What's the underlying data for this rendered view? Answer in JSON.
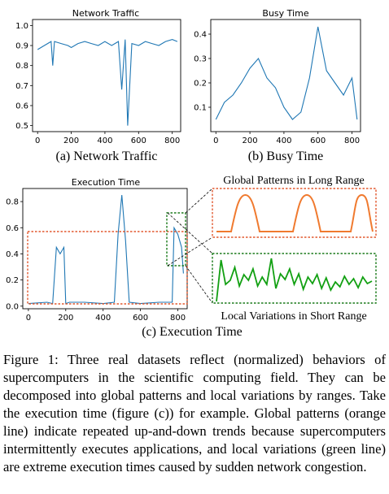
{
  "chart_data": [
    {
      "type": "line",
      "title": "Network Traffic",
      "subcaption": "(a) Network Traffic",
      "xlim": [
        -30,
        850
      ],
      "ylim": [
        0.47,
        1.03
      ],
      "xticks": [
        0,
        200,
        400,
        600,
        800
      ],
      "yticks": [
        0.5,
        0.6,
        0.7,
        0.8,
        0.9,
        1.0
      ],
      "ytick_labels": [
        "0.5",
        "0.6",
        "0.7",
        "0.8",
        "0.9",
        "1.0"
      ],
      "series": [
        {
          "color": "#1f77b4",
          "x": [
            0,
            40,
            80,
            90,
            100,
            140,
            180,
            200,
            240,
            280,
            320,
            360,
            400,
            440,
            480,
            500,
            520,
            535,
            560,
            600,
            640,
            680,
            720,
            760,
            800,
            830
          ],
          "y": [
            0.88,
            0.9,
            0.92,
            0.8,
            0.92,
            0.91,
            0.9,
            0.89,
            0.91,
            0.92,
            0.91,
            0.9,
            0.92,
            0.9,
            0.92,
            0.68,
            0.93,
            0.5,
            0.91,
            0.9,
            0.92,
            0.91,
            0.9,
            0.92,
            0.93,
            0.92
          ]
        }
      ]
    },
    {
      "type": "line",
      "title": "Busy Time",
      "subcaption": "(b) Busy Time",
      "xlim": [
        -30,
        850
      ],
      "ylim": [
        0.0,
        0.46
      ],
      "xticks": [
        0,
        200,
        400,
        600,
        800
      ],
      "yticks": [
        0.1,
        0.2,
        0.3,
        0.4
      ],
      "ytick_labels": [
        "0.1",
        "0.2",
        "0.3",
        "0.4"
      ],
      "series": [
        {
          "color": "#1f77b4",
          "x": [
            0,
            50,
            100,
            150,
            200,
            250,
            300,
            350,
            400,
            450,
            500,
            550,
            600,
            650,
            700,
            750,
            800,
            830
          ],
          "y": [
            0.05,
            0.12,
            0.15,
            0.2,
            0.26,
            0.3,
            0.22,
            0.18,
            0.1,
            0.05,
            0.08,
            0.22,
            0.43,
            0.25,
            0.2,
            0.15,
            0.22,
            0.05
          ]
        }
      ]
    },
    {
      "type": "line",
      "title": "Execution Time",
      "subcaption": "(c) Execution Time",
      "xlim": [
        -30,
        850
      ],
      "ylim": [
        -0.02,
        0.9
      ],
      "xticks": [
        0,
        200,
        400,
        600,
        800
      ],
      "yticks": [
        0.0,
        0.2,
        0.4,
        0.6,
        0.8
      ],
      "ytick_labels": [
        "0.0",
        "0.2",
        "0.4",
        "0.6",
        "0.8"
      ],
      "series": [
        {
          "color": "#1f77b4",
          "x": [
            0,
            100,
            130,
            150,
            170,
            190,
            200,
            220,
            300,
            400,
            460,
            480,
            500,
            520,
            540,
            600,
            700,
            770,
            780,
            800,
            820,
            830
          ],
          "y": [
            0.02,
            0.03,
            0.02,
            0.45,
            0.4,
            0.45,
            0.02,
            0.03,
            0.03,
            0.02,
            0.03,
            0.55,
            0.85,
            0.5,
            0.03,
            0.02,
            0.03,
            0.03,
            0.6,
            0.55,
            0.45,
            0.25
          ]
        }
      ]
    }
  ],
  "insets": {
    "global_label": "Global Patterns in Long Range",
    "local_label": "Local Variations in Short Range",
    "global_color": "#f07a2f",
    "local_color": "#12a012",
    "global_box_color": "#e2582f",
    "local_box_color": "#1a7a1a"
  },
  "caption": "Figure 1: Three real datasets reflect (normalized) behaviors of supercomputers in the scientific computing field. They can be decomposed into global patterns and local variations by ranges. Take the execution time (figure (c)) for example. Global patterns (orange line) indicate repeated up-and-down trends because supercomputers intermittently executes applications, and local variations (green line) are extreme execution times caused by sudden network congestion."
}
